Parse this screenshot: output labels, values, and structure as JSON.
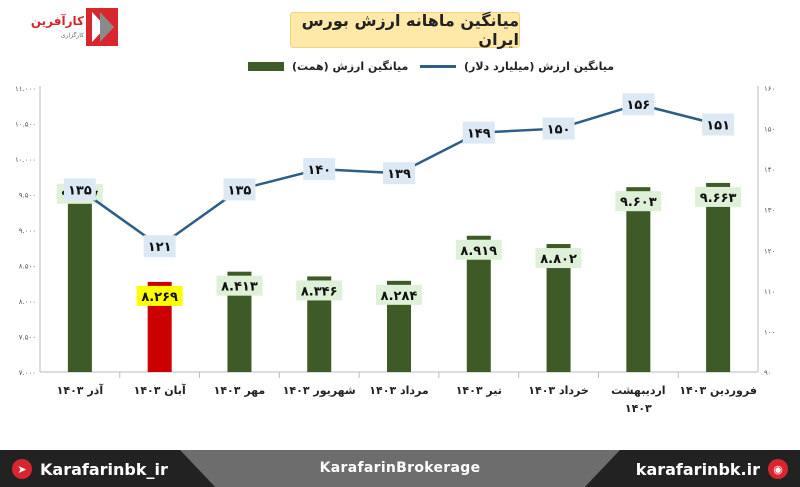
{
  "brand": {
    "logo_text": "کارآفرین",
    "logo_sub": "کارگزاری",
    "footer_left": "Karafarinbk_ir",
    "footer_center": "KarafarinBrokerage",
    "footer_right": "karafarinbk.ir"
  },
  "colors": {
    "bar": "#3d5a27",
    "bar_highlight": "#cc0000",
    "line": "#2e5e86",
    "bar_label_bg": "#dff0d8",
    "bar_label_highlight_bg": "#ffff00",
    "line_label_bg": "#dce9f5"
  },
  "chart_data": {
    "type": "bar",
    "title": "میانگین ماهانه ارزش بورس ایران",
    "categories": [
      "فروردین ۱۴۰۳",
      "اردیبهشت ۱۴۰۳",
      "خرداد ۱۴۰۳",
      "تیر ۱۴۰۳",
      "مرداد ۱۴۰۳",
      "شهریور ۱۴۰۳",
      "مهر ۱۴۰۳",
      "آبان ۱۴۰۳",
      "آذر ۱۴۰۳"
    ],
    "series": [
      {
        "name": "میانگین ارزش (همت)",
        "kind": "bar",
        "axis": "left",
        "values": [
          9663,
          9603,
          8802,
          8919,
          8284,
          8346,
          8413,
          8269,
          9707
        ],
        "labels": [
          "۹.۶۶۳",
          "۹.۶۰۳",
          "۸.۸۰۲",
          "۸.۹۱۹",
          "۸.۲۸۴",
          "۸.۳۴۶",
          "۸.۴۱۳",
          "۸.۲۶۹",
          "۹.۷۰۷"
        ],
        "highlight_index": 7
      },
      {
        "name": "میانگین ارزش (میلیارد دلار)",
        "kind": "line",
        "axis": "right",
        "values": [
          151,
          156,
          150,
          149,
          139,
          140,
          135,
          121,
          135
        ],
        "labels": [
          "۱۵۱",
          "۱۵۶",
          "۱۵۰",
          "۱۴۹",
          "۱۳۹",
          "۱۴۰",
          "۱۳۵",
          "۱۲۱",
          "۱۳۵"
        ]
      }
    ],
    "y_left": {
      "min": 7000,
      "max": 11000,
      "ticks": [
        7000,
        7500,
        8000,
        8500,
        9000,
        9500,
        10000,
        10500,
        11000
      ],
      "tick_labels": [
        "۷.۰۰۰",
        "۷.۵۰۰",
        "۸.۰۰۰",
        "۸.۵۰۰",
        "۹.۰۰۰",
        "۹.۵۰۰",
        "۱۰.۰۰۰",
        "۱۰.۵۰۰",
        "۱۱.۰۰۰"
      ]
    },
    "y_right": {
      "min": 90,
      "max": 160,
      "ticks": [
        90,
        100,
        110,
        120,
        130,
        140,
        150,
        160
      ],
      "tick_labels": [
        "۹۰",
        "۱۰۰",
        "۱۱۰",
        "۱۲۰",
        "۱۳۰",
        "۱۴۰",
        "۱۵۰",
        "۱۶۰"
      ]
    },
    "grid": false,
    "legend_position": "top"
  }
}
